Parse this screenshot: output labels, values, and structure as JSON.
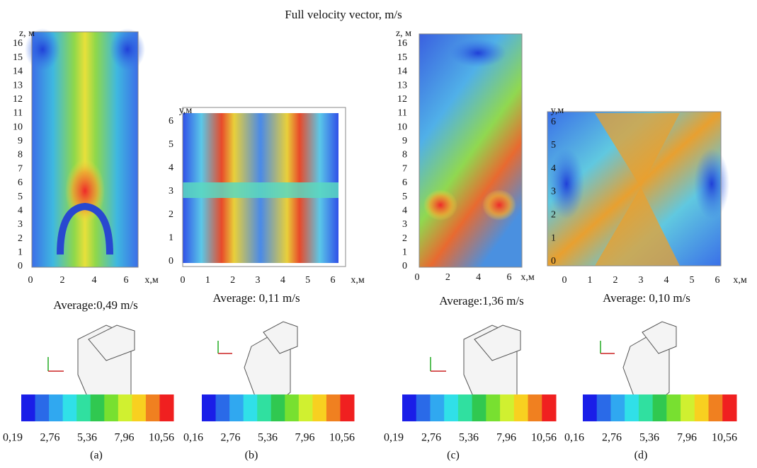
{
  "title": "Full velocity vector, m/s",
  "panels": [
    {
      "y_label": "z, м",
      "x_label": "x,м",
      "yticks": [
        "0",
        "1",
        "2",
        "3",
        "4",
        "5",
        "6",
        "7",
        "8",
        "9",
        "10",
        "11",
        "12",
        "13",
        "14",
        "15",
        "16"
      ],
      "xticks": [
        "0",
        "2",
        "4",
        "6"
      ],
      "average": "Average:0,49 m/s",
      "colorbar_labels": [
        "0,19",
        "2,76",
        "5,36",
        "7,96",
        "10,56"
      ],
      "caption": "(a)"
    },
    {
      "y_label": "y,м",
      "x_label": "x,м",
      "yticks": [
        "0",
        "1",
        "2",
        "3",
        "4",
        "5",
        "6"
      ],
      "xticks": [
        "0",
        "1",
        "2",
        "3",
        "4",
        "5",
        "6"
      ],
      "average": "Average: 0,11 m/s",
      "colorbar_labels": [
        "0,16",
        "2,76",
        "5,36",
        "7,96",
        "10,56"
      ],
      "caption": "(b)"
    },
    {
      "y_label": "z, м",
      "x_label": "x,м",
      "yticks": [
        "0",
        "1",
        "2",
        "3",
        "4",
        "5",
        "6",
        "7",
        "8",
        "9",
        "10",
        "11",
        "12",
        "13",
        "14",
        "15",
        "16"
      ],
      "xticks": [
        "0",
        "2",
        "4",
        "6"
      ],
      "average": "Average:1,36 m/s",
      "colorbar_labels": [
        "0,19",
        "2,76",
        "5,36",
        "7,96",
        "10,56"
      ],
      "caption": "(c)"
    },
    {
      "y_label": "y,м",
      "x_label": "x,м",
      "yticks": [
        "0",
        "1",
        "2",
        "3",
        "4",
        "5",
        "6"
      ],
      "xticks": [
        "0",
        "1",
        "2",
        "3",
        "4",
        "5",
        "6"
      ],
      "average": "Average: 0,10 m/s",
      "colorbar_labels": [
        "0,16",
        "2,76",
        "5,36",
        "7,96",
        "10,56"
      ],
      "caption": "(d)"
    }
  ]
}
